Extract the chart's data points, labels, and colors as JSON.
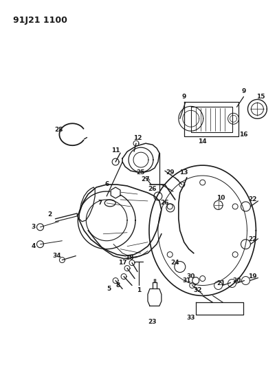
{
  "title": "91J21 1100",
  "bg": "#ffffff",
  "lc": "#1a1a1a",
  "fw": 4.03,
  "fh": 5.33,
  "dpi": 100
}
